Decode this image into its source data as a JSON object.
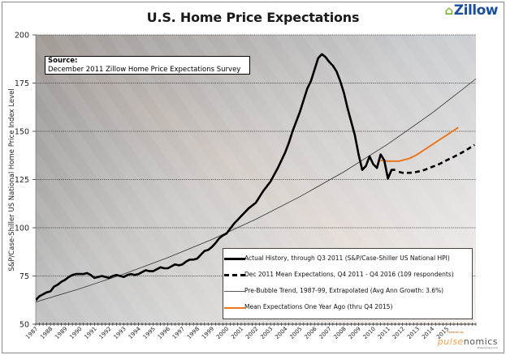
{
  "branding": {
    "logo": "Zillow",
    "logo_icon": "zillow-house-icon",
    "powered_by": "Powered by",
    "pulsenomics_a": "pulse",
    "pulsenomics_b": "nomics",
    "pulsenomics_llc": "Pulsenomics LLC"
  },
  "source": {
    "label": "Source:",
    "text": "December 2011 Zillow Home Price Expectations Survey"
  },
  "colors": {
    "actual": "#000000",
    "expectations": "#000000",
    "trend": "#333333",
    "year_ago": "#e87722"
  },
  "chart_data": {
    "type": "line",
    "title": "U.S. Home Price Expectations",
    "xlabel": "",
    "ylabel": "S&P/Case-Shiller US National Home Price Index Level",
    "xlim": [
      1987,
      2017
    ],
    "ylim": [
      50,
      200
    ],
    "yticks": [
      50,
      75,
      100,
      125,
      150,
      175,
      200
    ],
    "xtick_labels": [
      "1987",
      "1988",
      "1989",
      "1990",
      "1991",
      "1992",
      "1993",
      "1994",
      "1995",
      "1996",
      "1997",
      "1998",
      "1999",
      "2000",
      "2001",
      "2002",
      "2003",
      "2004",
      "2005",
      "2006",
      "2007",
      "2008",
      "2009",
      "2010",
      "2011",
      "2012",
      "2013",
      "2014",
      "2015"
    ],
    "grid": "horizontal",
    "legend_position": "bottom-right",
    "series": [
      {
        "name": "Actual History, through Q3 2011 (S&P/Case-Shiller US National HPI)",
        "style": "solid-thick",
        "x": [
          1987.0,
          1987.25,
          1987.5,
          1987.75,
          1988.0,
          1988.25,
          1988.5,
          1988.75,
          1989.0,
          1989.25,
          1989.5,
          1989.75,
          1990.0,
          1990.25,
          1990.5,
          1990.75,
          1991.0,
          1991.25,
          1991.5,
          1991.75,
          1992.0,
          1992.25,
          1992.5,
          1992.75,
          1993.0,
          1993.25,
          1993.5,
          1993.75,
          1994.0,
          1994.25,
          1994.5,
          1994.75,
          1995.0,
          1995.25,
          1995.5,
          1995.75,
          1996.0,
          1996.25,
          1996.5,
          1996.75,
          1997.0,
          1997.25,
          1997.5,
          1997.75,
          1998.0,
          1998.25,
          1998.5,
          1998.75,
          1999.0,
          1999.25,
          1999.5,
          1999.75,
          2000.0,
          2000.25,
          2000.5,
          2000.75,
          2001.0,
          2001.25,
          2001.5,
          2001.75,
          2002.0,
          2002.25,
          2002.5,
          2002.75,
          2003.0,
          2003.25,
          2003.5,
          2003.75,
          2004.0,
          2004.25,
          2004.5,
          2004.75,
          2005.0,
          2005.25,
          2005.5,
          2005.75,
          2006.0,
          2006.25,
          2006.5,
          2006.75,
          2007.0,
          2007.25,
          2007.5,
          2007.75,
          2008.0,
          2008.25,
          2008.5,
          2008.75,
          2009.0,
          2009.25,
          2009.5,
          2009.75,
          2010.0,
          2010.25,
          2010.5,
          2010.75,
          2011.0,
          2011.25,
          2011.5
        ],
        "values": [
          62.5,
          64.5,
          65.5,
          66.5,
          67,
          69.5,
          70.5,
          72,
          73,
          74.5,
          75.5,
          76,
          76,
          76,
          76.5,
          75.5,
          74,
          74.5,
          75,
          74.5,
          74,
          75,
          75.5,
          75,
          74.5,
          75.5,
          76,
          75.5,
          76,
          77,
          78,
          77.5,
          77.5,
          78.5,
          79.5,
          79,
          79,
          80,
          81,
          80.5,
          81,
          82.5,
          83.5,
          83.5,
          84,
          86,
          88,
          88.5,
          90,
          92,
          94.5,
          96,
          97,
          99.5,
          102,
          104,
          106,
          108,
          110,
          111.5,
          113,
          116,
          119,
          121.5,
          124,
          127.5,
          131,
          135,
          139,
          144,
          150,
          155,
          160,
          166,
          172,
          176,
          182,
          188,
          190,
          188.5,
          186,
          184,
          181,
          176,
          170,
          162,
          155,
          148,
          138,
          130,
          132,
          137,
          133,
          131,
          138,
          135,
          125.5,
          130,
          130
        ]
      },
      {
        "name": "Dec 2011 Mean Expectations, Q4 2011 - Q4 2016 (109 respondents)",
        "style": "dashed-thick",
        "x": [
          2011.75,
          2012.0,
          2012.5,
          2013.0,
          2013.5,
          2014.0,
          2014.5,
          2015.0,
          2015.5,
          2016.0,
          2016.5,
          2016.9
        ],
        "values": [
          129,
          128.5,
          128.5,
          129,
          130,
          131.5,
          133,
          135,
          136.8,
          138.8,
          141,
          143
        ]
      },
      {
        "name": "Pre-Bubble Trend, 1987-99, Extrapolated (Avg Ann Growth: 3.6%)",
        "style": "thin",
        "growth_rate": 0.036,
        "x": [
          1987,
          1990,
          1993,
          1996,
          1999,
          2002,
          2005,
          2008,
          2011,
          2014,
          2017
        ],
        "values": [
          61.5,
          68.4,
          76.0,
          84.5,
          93.9,
          104.4,
          116.1,
          129.0,
          143.4,
          159.4,
          177.2
        ]
      },
      {
        "name": "Mean Expectations One Year Ago (thru Q4 2015)",
        "style": "orange",
        "x": [
          2010.5,
          2011.0,
          2011.75,
          2012.5,
          2013.0,
          2013.5,
          2014.0,
          2014.5,
          2015.0,
          2015.5,
          2015.8
        ],
        "values": [
          135,
          134.5,
          134.5,
          136,
          138,
          140.5,
          143,
          145.5,
          148,
          150.5,
          152
        ]
      }
    ]
  }
}
